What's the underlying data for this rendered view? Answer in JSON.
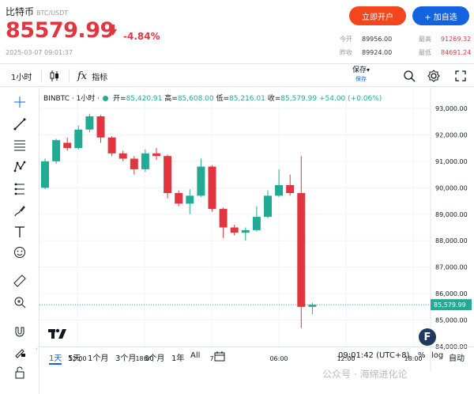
{
  "header": {
    "title": "比特币",
    "pair": "BTC/USDT",
    "price": "85579.99",
    "change": "-4.84%",
    "timestamp": "2025-03-07 09:01:37",
    "open_account_label": "立即开户",
    "add_watch_label": "+ 加自选",
    "stats": [
      {
        "key": "今开",
        "value": "89956.00"
      },
      {
        "key": "最高",
        "value": "91269.32"
      },
      {
        "key": "昨收",
        "value": "89924.00"
      },
      {
        "key": "最低",
        "value": "84691.24"
      }
    ],
    "colors": {
      "down": "#e0363f",
      "up": "#22ab94",
      "brand_orange": "#f2461c",
      "brand_blue": "#1463de"
    }
  },
  "toolbar": {
    "interval": "1小时",
    "candles_icon": "candles-icon",
    "indicators_label": "指标",
    "save_label": "保存",
    "save_sub": "保存",
    "icons": [
      "search-icon",
      "gear-icon",
      "fullscreen-icon"
    ]
  },
  "tools": [
    "crosshair-icon",
    "trendline-icon",
    "fib-icon",
    "pattern-icon",
    "gann-icon",
    "brush-icon",
    "text-icon",
    "emoji-icon",
    "ruler-icon",
    "zoom-icon",
    "magnet-icon",
    "lock-draw-icon",
    "lock-icon"
  ],
  "legend": {
    "symbol": "BINBTC · 1小时 ·",
    "open_k": "开=",
    "open_v": "85,420.91",
    "high_k": "高=",
    "high_v": "85,608.00",
    "low_k": "低=",
    "low_v": "85,216.01",
    "close_k": "收=",
    "close_v": "85,579.99",
    "change_v": "+54.00 (+0.06%)"
  },
  "chart_data": {
    "type": "candlestick",
    "x_ticks": [
      "12:00",
      "18:00",
      "7",
      "06:00",
      "12:00",
      "18:00"
    ],
    "y_ticks": [
      "93,000.00",
      "92,000.00",
      "91,000.00",
      "90,000.00",
      "89,000.00",
      "88,000.00",
      "87,000.00",
      "86,000.00",
      "85,000.00",
      "84,000.00"
    ],
    "ylim": [
      84000,
      93500
    ],
    "last_price_label": "85,579.99",
    "candles": [
      {
        "o": 90000,
        "c": 91000,
        "h": 91100,
        "l": 89950
      },
      {
        "o": 91000,
        "c": 91800,
        "h": 91850,
        "l": 90900
      },
      {
        "o": 91700,
        "c": 91500,
        "h": 91900,
        "l": 91400
      },
      {
        "o": 91500,
        "c": 92200,
        "h": 92350,
        "l": 91450
      },
      {
        "o": 92200,
        "c": 92700,
        "h": 92800,
        "l": 92100
      },
      {
        "o": 92700,
        "c": 91900,
        "h": 92750,
        "l": 91700
      },
      {
        "o": 91900,
        "c": 91300,
        "h": 91950,
        "l": 91200
      },
      {
        "o": 91300,
        "c": 91100,
        "h": 91400,
        "l": 91000
      },
      {
        "o": 91100,
        "c": 90700,
        "h": 91200,
        "l": 90500
      },
      {
        "o": 90700,
        "c": 91300,
        "h": 91450,
        "l": 90600
      },
      {
        "o": 91300,
        "c": 91200,
        "h": 91500,
        "l": 91050
      },
      {
        "o": 91200,
        "c": 89800,
        "h": 91250,
        "l": 89600
      },
      {
        "o": 89800,
        "c": 89400,
        "h": 89900,
        "l": 89300
      },
      {
        "o": 89400,
        "c": 89700,
        "h": 89950,
        "l": 89000
      },
      {
        "o": 89700,
        "c": 90800,
        "h": 91100,
        "l": 89650
      },
      {
        "o": 90800,
        "c": 89200,
        "h": 90850,
        "l": 89100
      },
      {
        "o": 89200,
        "c": 88500,
        "h": 89250,
        "l": 88100
      },
      {
        "o": 88500,
        "c": 88300,
        "h": 88600,
        "l": 88200
      },
      {
        "o": 88300,
        "c": 88400,
        "h": 88500,
        "l": 88000
      },
      {
        "o": 88400,
        "c": 88900,
        "h": 89300,
        "l": 88350
      },
      {
        "o": 88900,
        "c": 89700,
        "h": 89900,
        "l": 88850
      },
      {
        "o": 89700,
        "c": 90100,
        "h": 90700,
        "l": 89650
      },
      {
        "o": 90100,
        "c": 89800,
        "h": 90500,
        "l": 89700
      },
      {
        "o": 89800,
        "c": 85500,
        "h": 91200,
        "l": 84700
      },
      {
        "o": 85500,
        "c": 85580,
        "h": 85650,
        "l": 85220
      }
    ]
  },
  "ranges": [
    "1天",
    "5天",
    "1个月",
    "3个月",
    "6个月",
    "1年",
    "All"
  ],
  "active_range": "1天",
  "footer": {
    "time": "09:01:42 (UTC+8)",
    "pct": "%",
    "log": "log",
    "auto": "自动"
  },
  "watermark": "公众号 · 海绵进化论"
}
